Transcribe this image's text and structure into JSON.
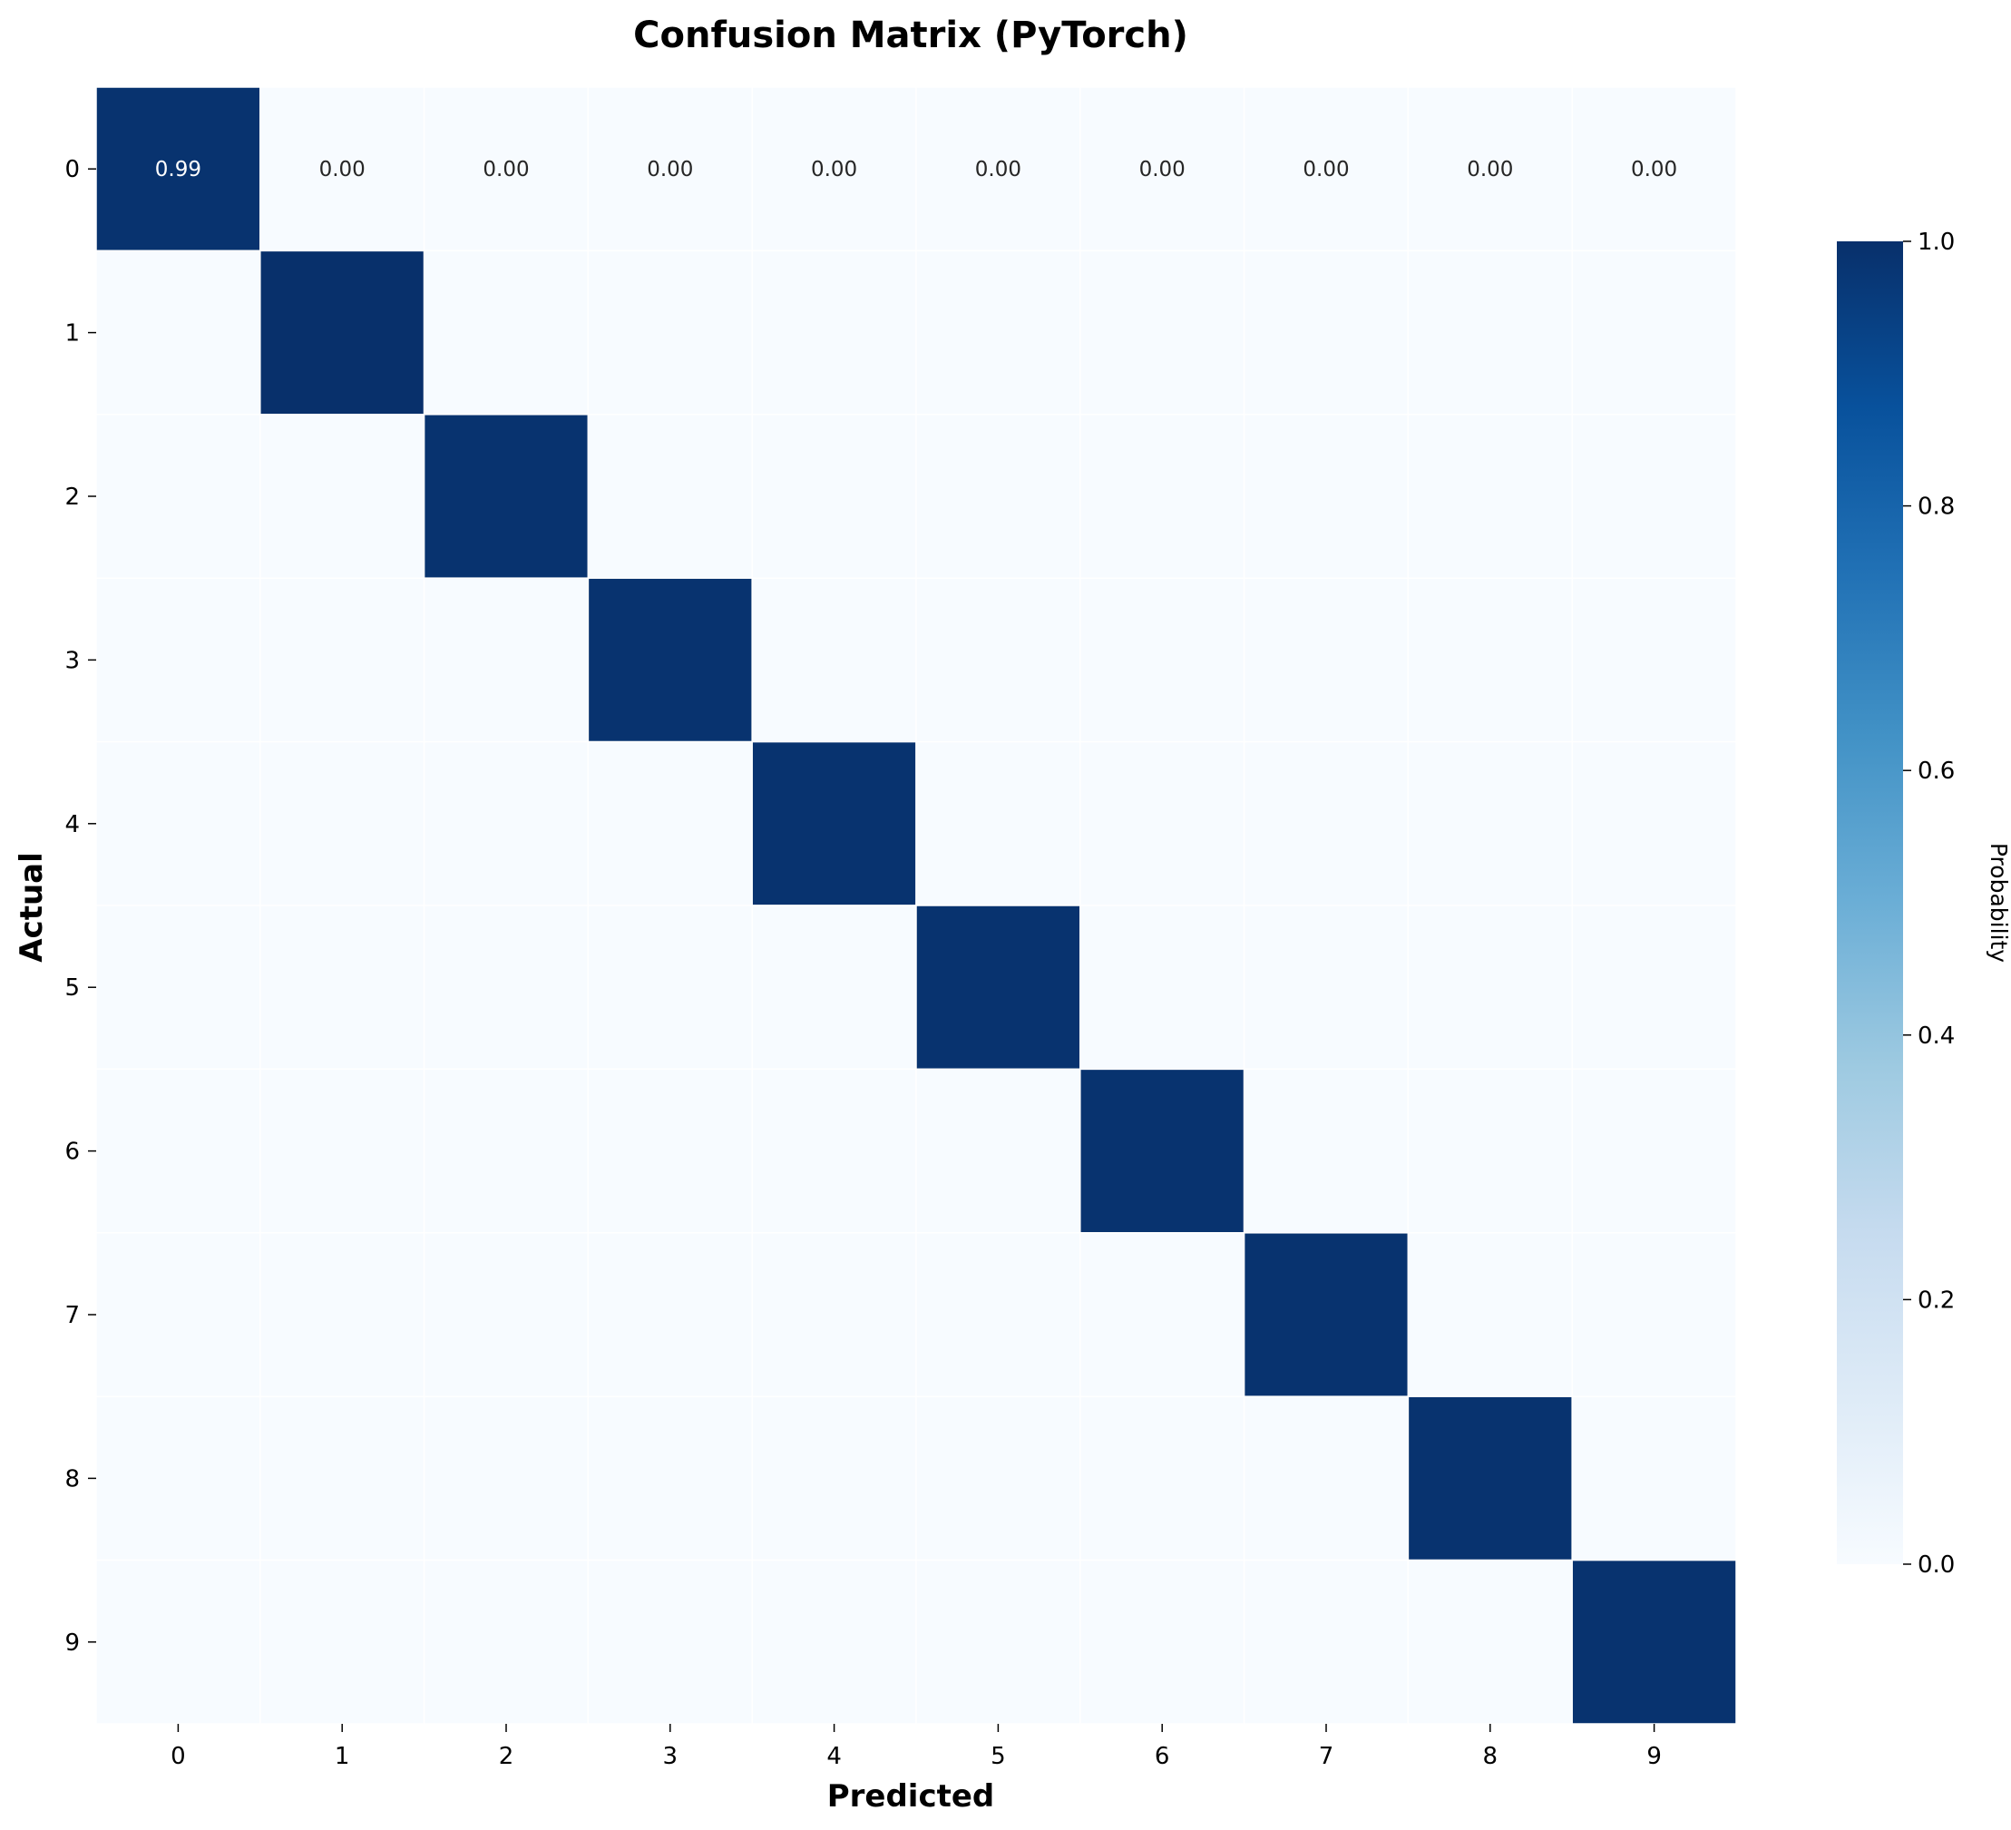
{
  "chart_data": {
    "type": "heatmap",
    "title": "Confusion Matrix (PyTorch)",
    "xlabel": "Predicted",
    "ylabel": "Actual",
    "x_categories": [
      "0",
      "1",
      "2",
      "3",
      "4",
      "5",
      "6",
      "7",
      "8",
      "9"
    ],
    "y_categories": [
      "0",
      "1",
      "2",
      "3",
      "4",
      "5",
      "6",
      "7",
      "8",
      "9"
    ],
    "values": [
      [
        0.99,
        0.0,
        0.0,
        0.0,
        0.0,
        0.0,
        0.0,
        0.0,
        0.0,
        0.0
      ],
      [
        0.0,
        1.0,
        0.0,
        0.0,
        0.0,
        0.0,
        0.0,
        0.0,
        0.0,
        0.0
      ],
      [
        0.0,
        0.0,
        0.99,
        0.0,
        0.0,
        0.0,
        0.0,
        0.0,
        0.0,
        0.0
      ],
      [
        0.0,
        0.0,
        0.0,
        0.99,
        0.0,
        0.0,
        0.0,
        0.0,
        0.0,
        0.0
      ],
      [
        0.0,
        0.0,
        0.0,
        0.0,
        0.99,
        0.0,
        0.0,
        0.0,
        0.0,
        0.0
      ],
      [
        0.0,
        0.0,
        0.0,
        0.0,
        0.0,
        0.99,
        0.0,
        0.0,
        0.0,
        0.0
      ],
      [
        0.0,
        0.0,
        0.0,
        0.0,
        0.0,
        0.0,
        0.99,
        0.0,
        0.0,
        0.0
      ],
      [
        0.0,
        0.0,
        0.0,
        0.0,
        0.0,
        0.0,
        0.0,
        0.99,
        0.0,
        0.0
      ],
      [
        0.0,
        0.0,
        0.0,
        0.0,
        0.0,
        0.0,
        0.0,
        0.0,
        0.99,
        0.0
      ],
      [
        0.0,
        0.0,
        0.0,
        0.0,
        0.0,
        0.0,
        0.0,
        0.0,
        0.0,
        0.99
      ]
    ],
    "annotated_rows": [
      0
    ],
    "colorbar": {
      "label": "Probability",
      "range": [
        0.0,
        1.0
      ],
      "ticks": [
        "0.0",
        "0.2",
        "0.4",
        "0.6",
        "0.8",
        "1.0"
      ]
    },
    "colormap": "Blues",
    "colors": {
      "low": "#f7fbff",
      "high": "#08306b",
      "grid_line": "#ffffff"
    }
  }
}
